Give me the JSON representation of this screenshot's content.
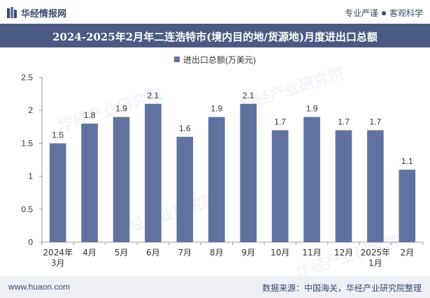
{
  "header": {
    "brand": "华经情报网",
    "tagline_left": "专业严谨",
    "tagline_right": "客观科学"
  },
  "title": "2024-2025年2月年二连浩特市(境内目的地/货源地)月度进出口总额",
  "footer": {
    "site": "www.huaon.com",
    "source": "数据来源：中国海关，华经产业研究院整理"
  },
  "colors": {
    "bar": "#6272a0",
    "title_bg": "#4a5a82",
    "footer_bg": "#eef0f5"
  },
  "chart_data": {
    "type": "bar",
    "title": "2024-2025年2月年二连浩特市(境内目的地/货源地)月度进出口总额",
    "categories": [
      "2024年\n3月",
      "4月",
      "5月",
      "6月",
      "7月",
      "8月",
      "9月",
      "10月",
      "11月",
      "12月",
      "2025年\n1月",
      "2月"
    ],
    "series": [
      {
        "name": "进出口总额(万美元)",
        "values": [
          1.5,
          1.8,
          1.9,
          2.1,
          1.6,
          1.9,
          2.1,
          1.7,
          1.9,
          1.7,
          1.7,
          1.1
        ]
      }
    ],
    "ylim": [
      0,
      2.5
    ],
    "yticks": [
      0,
      0.5,
      1,
      1.5,
      2,
      2.5
    ],
    "ytick_labels": [
      "0",
      "0.5",
      "1",
      "1.5",
      "2",
      "2.5"
    ],
    "data_labels": [
      "1.5",
      "1.8",
      "1.9",
      "2.1",
      "1.6",
      "1.9",
      "2.1",
      "1.7",
      "1.9",
      "1.7",
      "1.7",
      "1.1"
    ],
    "legend": "top-center",
    "grid": false
  }
}
